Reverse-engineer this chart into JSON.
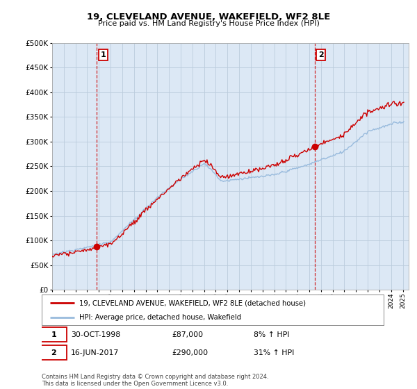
{
  "title": "19, CLEVELAND AVENUE, WAKEFIELD, WF2 8LE",
  "subtitle": "Price paid vs. HM Land Registry's House Price Index (HPI)",
  "legend_line1": "19, CLEVELAND AVENUE, WAKEFIELD, WF2 8LE (detached house)",
  "legend_line2": "HPI: Average price, detached house, Wakefield",
  "annotation1_label": "1",
  "annotation1_date": "30-OCT-1998",
  "annotation1_price": "£87,000",
  "annotation1_hpi": "8% ↑ HPI",
  "annotation2_label": "2",
  "annotation2_date": "16-JUN-2017",
  "annotation2_price": "£290,000",
  "annotation2_hpi": "31% ↑ HPI",
  "footer": "Contains HM Land Registry data © Crown copyright and database right 2024.\nThis data is licensed under the Open Government Licence v3.0.",
  "sale1_year": 1998.83,
  "sale1_price": 87000,
  "sale2_year": 2017.46,
  "sale2_price": 290000,
  "hpi_color": "#99bbdd",
  "price_color": "#cc0000",
  "vline_color": "#cc0000",
  "background_color": "#ffffff",
  "chart_bg_color": "#dce8f5",
  "grid_color": "#bbccdd",
  "ylim": [
    0,
    500000
  ],
  "yticks": [
    0,
    50000,
    100000,
    150000,
    200000,
    250000,
    300000,
    350000,
    400000,
    450000,
    500000
  ],
  "xmin": 1995.0,
  "xmax": 2025.5
}
